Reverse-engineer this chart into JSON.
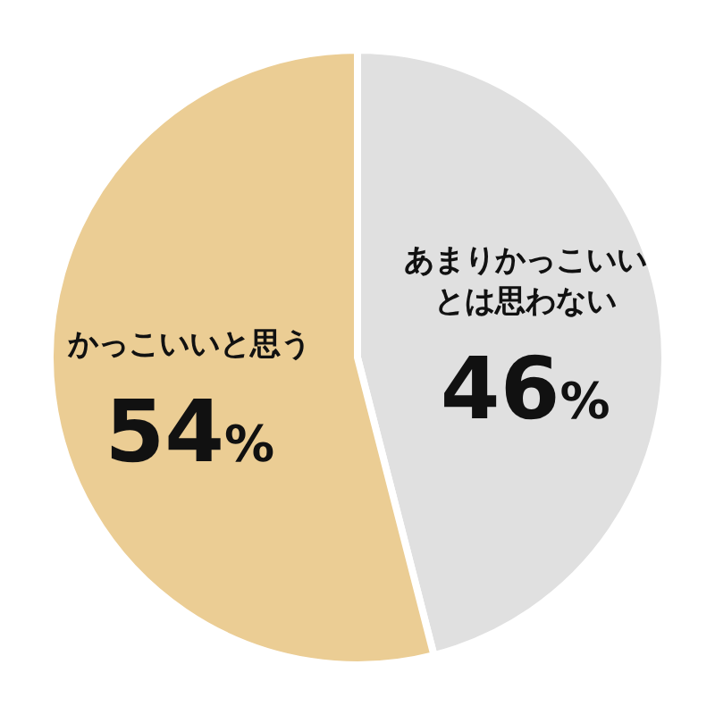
{
  "chart_data": {
    "type": "pie",
    "categories": [
      "あまりかっこいいとは思わない",
      "かっこいいと思う"
    ],
    "values": [
      46,
      54
    ],
    "colors": [
      "#e0e0e0",
      "#ebcd94"
    ],
    "value_labels": [
      "46%",
      "54%"
    ]
  }
}
